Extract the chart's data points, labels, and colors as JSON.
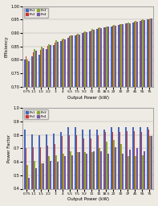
{
  "categories": [
    "0.75",
    "1.1",
    "1.5",
    "2.2",
    "3",
    "4",
    "5.5",
    "7.5",
    "9.2",
    "11",
    "15",
    "18.5",
    "22",
    "30",
    "37",
    "45",
    "55",
    "75"
  ],
  "efficiency": {
    "Pn1": [
      0.8,
      0.812,
      0.82,
      0.84,
      0.855,
      0.87,
      0.883,
      0.89,
      0.9,
      0.905,
      0.915,
      0.92,
      0.925,
      0.93,
      0.935,
      0.94,
      0.945,
      0.95
    ],
    "Pn2": [
      0.812,
      0.828,
      0.838,
      0.852,
      0.865,
      0.876,
      0.888,
      0.893,
      0.903,
      0.91,
      0.918,
      0.922,
      0.927,
      0.932,
      0.936,
      0.942,
      0.947,
      0.952
    ],
    "Pn3": [
      0.802,
      0.84,
      0.848,
      0.858,
      0.872,
      0.88,
      0.892,
      0.897,
      0.906,
      0.914,
      0.92,
      0.924,
      0.93,
      0.934,
      0.938,
      0.944,
      0.95,
      0.955
    ],
    "Pn4": [
      0.795,
      0.835,
      0.844,
      0.855,
      0.868,
      0.877,
      0.89,
      0.895,
      0.904,
      0.912,
      0.918,
      0.923,
      0.927,
      0.932,
      0.937,
      0.943,
      0.948,
      0.954
    ]
  },
  "power_factor": {
    "Pn1": [
      0.84,
      0.805,
      0.8,
      0.805,
      0.81,
      0.82,
      0.855,
      0.855,
      0.84,
      0.84,
      0.84,
      0.84,
      0.86,
      0.855,
      0.855,
      0.86,
      0.86,
      0.855
    ],
    "Pn2": [
      0.7,
      0.71,
      0.71,
      0.72,
      0.73,
      0.79,
      0.8,
      0.8,
      0.775,
      0.775,
      0.795,
      0.82,
      0.82,
      0.82,
      0.83,
      0.825,
      0.82,
      0.84
    ],
    "Pn3": [
      0.575,
      0.605,
      0.59,
      0.64,
      0.65,
      0.66,
      0.68,
      0.67,
      0.67,
      0.67,
      0.7,
      0.75,
      0.76,
      0.73,
      0.64,
      0.64,
      0.65,
      0.79
    ],
    "Pn4": [
      0.48,
      0.55,
      0.59,
      0.605,
      0.6,
      0.64,
      0.65,
      0.67,
      0.66,
      0.68,
      0.68,
      0.66,
      0.705,
      0.66,
      0.69,
      0.7,
      0.68,
      0.79
    ]
  },
  "colors": [
    "#4466bb",
    "#cc3333",
    "#88aa33",
    "#7755aa"
  ],
  "efficiency_ylim": [
    0.7,
    1.0
  ],
  "pf_ylim": [
    0.4,
    1.0
  ],
  "efficiency_yticks": [
    0.7,
    0.75,
    0.8,
    0.85,
    0.9,
    0.95,
    1.0
  ],
  "pf_yticks": [
    0.4,
    0.5,
    0.6,
    0.7,
    0.8,
    0.9,
    1.0
  ],
  "ylabel_efficiency": "Efficiency",
  "ylabel_pf": "Power Factor",
  "xlabel": "Output Power (kW)",
  "legend_labels": [
    "Pn1",
    "Pn2",
    "Pn3",
    "Pn4"
  ],
  "background_color": "#eeeae4"
}
